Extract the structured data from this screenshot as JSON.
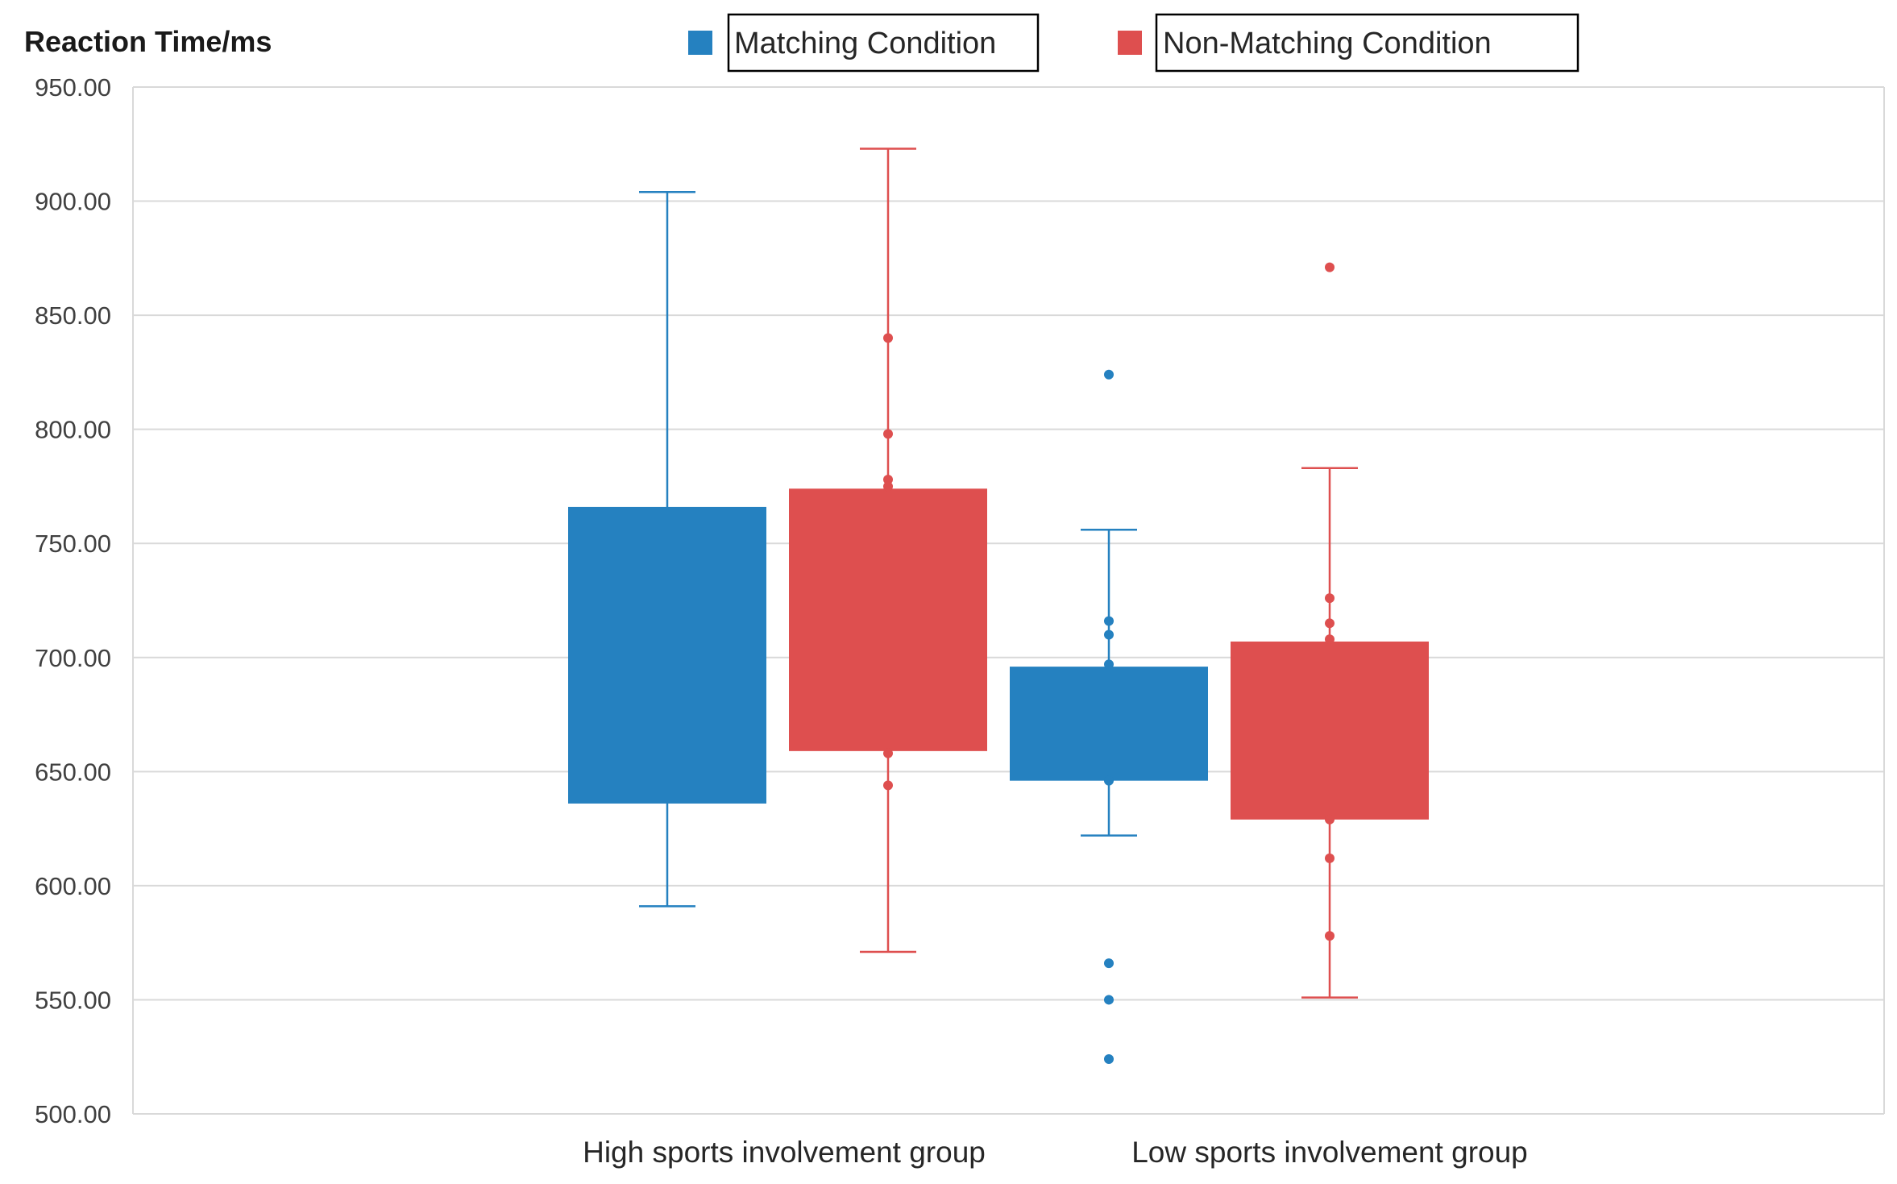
{
  "chart_data": {
    "type": "boxplot",
    "ylabel": "Reaction Time/ms",
    "ylim": [
      500,
      950
    ],
    "ytick_step": 50,
    "ytick_labels": [
      "500.00",
      "550.00",
      "600.00",
      "650.00",
      "700.00",
      "750.00",
      "800.00",
      "850.00",
      "900.00",
      "950.00"
    ],
    "grid": true,
    "legend_position": "top-center",
    "categories": [
      "High sports involvement group",
      "Low sports involvement group"
    ],
    "series": [
      {
        "name": "Matching Condition",
        "color": "#2581c0",
        "boxes": [
          {
            "category": "High sports involvement group",
            "whisker_low": 591,
            "q1": 636,
            "q3": 766,
            "whisker_high": 904,
            "points": []
          },
          {
            "category": "Low sports involvement group",
            "whisker_low": 622,
            "q1": 646,
            "q3": 696,
            "whisker_high": 756,
            "points": [
              697,
              710,
              716,
              646,
              824,
              566,
              550,
              524
            ]
          }
        ]
      },
      {
        "name": "Non-Matching Condition",
        "color": "#de4f4f",
        "boxes": [
          {
            "category": "High sports involvement group",
            "whisker_low": 571,
            "q1": 659,
            "q3": 774,
            "whisker_high": 923,
            "points": [
              840,
              798,
              778,
              775,
              658,
              644
            ]
          },
          {
            "category": "Low sports involvement group",
            "whisker_low": 551,
            "q1": 629,
            "q3": 707,
            "whisker_high": 783,
            "points": [
              871,
              726,
              715,
              708,
              629,
              612,
              578
            ]
          }
        ]
      }
    ]
  }
}
